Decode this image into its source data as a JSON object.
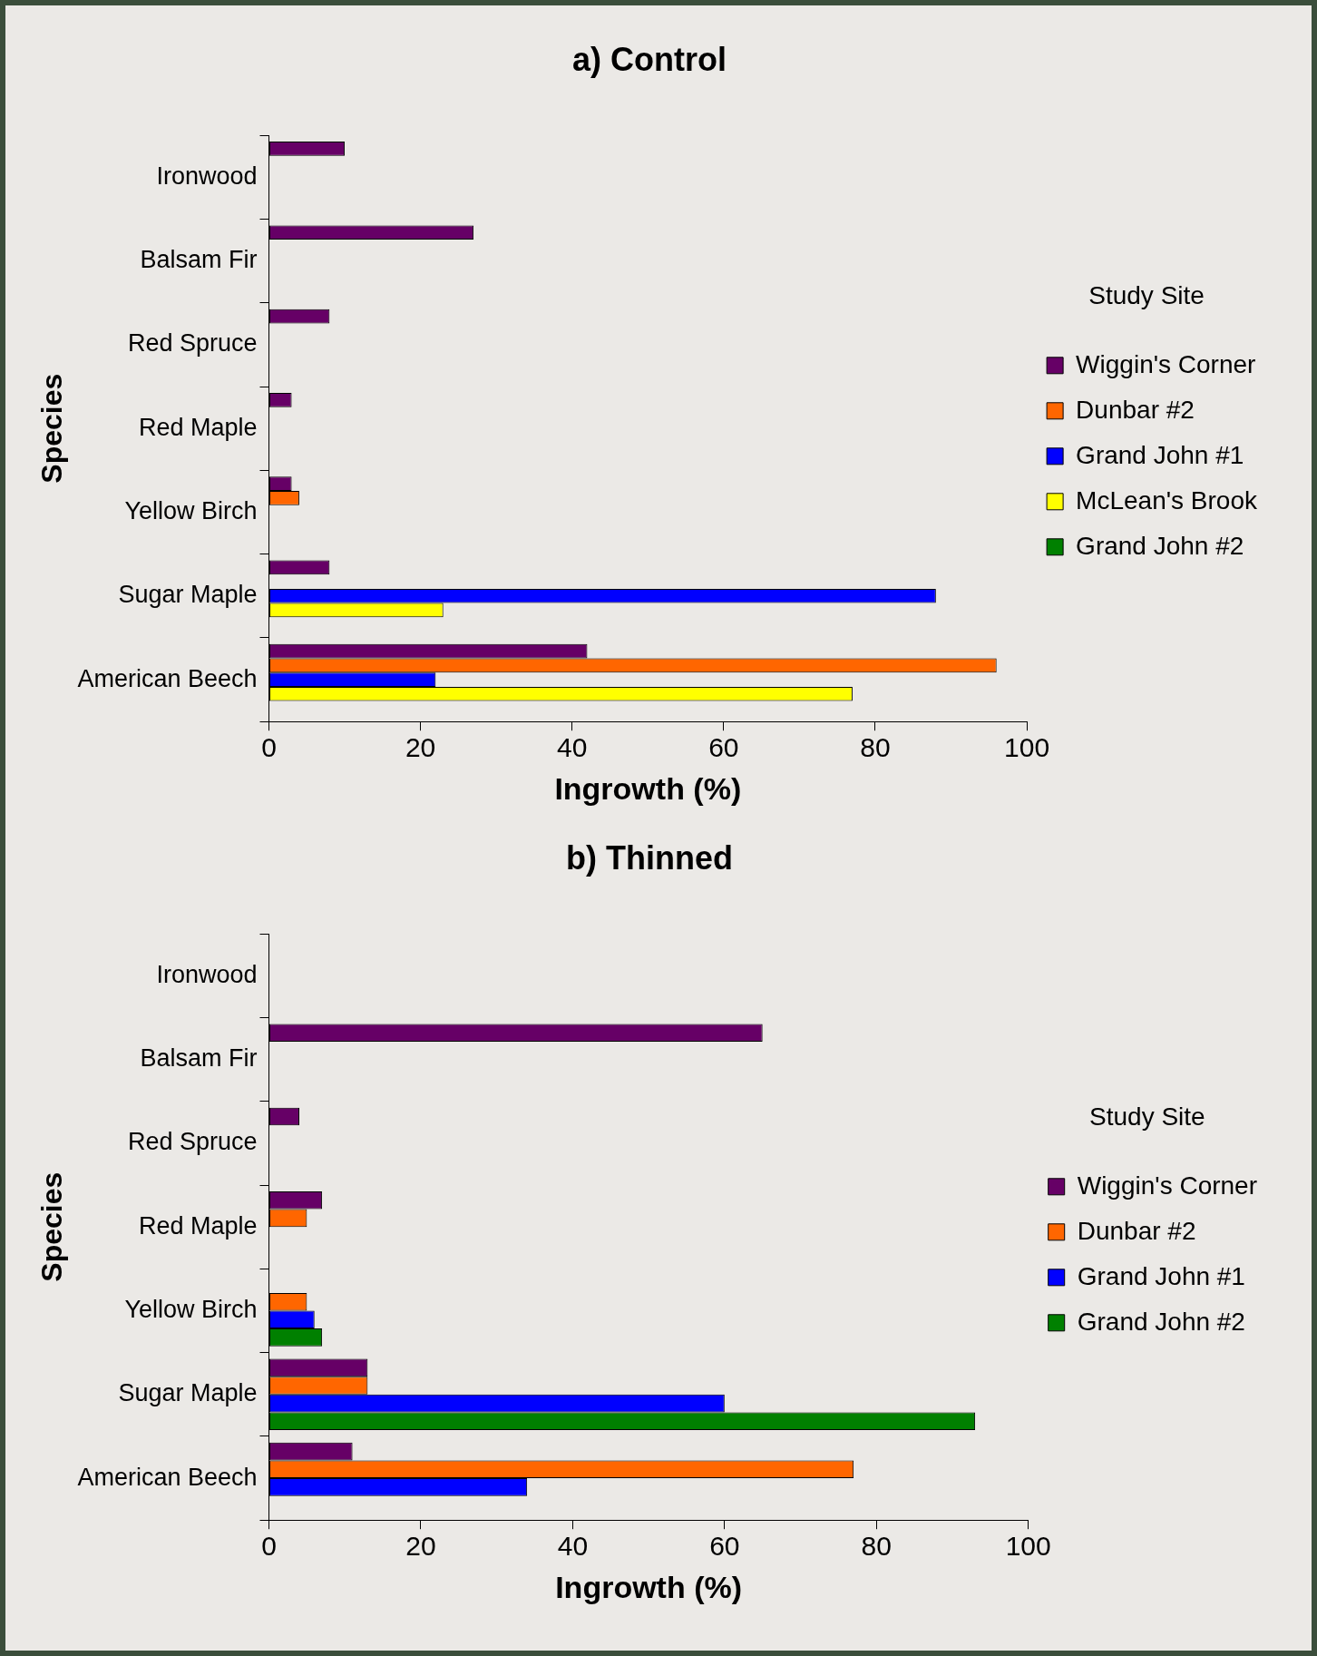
{
  "chart_data": [
    {
      "type": "bar",
      "orientation": "horizontal",
      "title": "a) Control",
      "xlabel": "Ingrowth (%)",
      "ylabel": "Species",
      "legend_title": "Study Site",
      "legend": "right",
      "grid": false,
      "categories": [
        "Ironwood",
        "Balsam Fir",
        "Red Spruce",
        "Red Maple",
        "Yellow Birch",
        "Sugar Maple",
        "American Beech"
      ],
      "xlim": [
        0,
        100
      ],
      "xticks": [
        0,
        20,
        40,
        60,
        80,
        100
      ],
      "series": [
        {
          "name": "Wiggin's Corner",
          "color": "#660066",
          "values": [
            10,
            27,
            8,
            3,
            3,
            8,
            42
          ]
        },
        {
          "name": "Dunbar #2",
          "color": "#ff6600",
          "values": [
            null,
            null,
            null,
            null,
            4,
            null,
            96
          ]
        },
        {
          "name": "Grand John #1",
          "color": "#0000ff",
          "values": [
            null,
            null,
            null,
            null,
            null,
            88,
            22
          ]
        },
        {
          "name": "McLean's Brook",
          "color": "#ffff00",
          "values": [
            null,
            null,
            null,
            null,
            null,
            23,
            77
          ]
        },
        {
          "name": "Grand John #2",
          "color": "#008000",
          "values": [
            null,
            null,
            null,
            null,
            null,
            null,
            null
          ]
        }
      ]
    },
    {
      "type": "bar",
      "orientation": "horizontal",
      "title": "b) Thinned",
      "xlabel": "Ingrowth (%)",
      "ylabel": "Species",
      "legend_title": "Study Site",
      "legend": "right",
      "grid": false,
      "categories": [
        "Ironwood",
        "Balsam Fir",
        "Red Spruce",
        "Red Maple",
        "Yellow Birch",
        "Sugar Maple",
        "American Beech"
      ],
      "xlim": [
        0,
        100
      ],
      "xticks": [
        0,
        20,
        40,
        60,
        80,
        100
      ],
      "series": [
        {
          "name": "Wiggin's Corner",
          "color": "#660066",
          "values": [
            null,
            65,
            4,
            7,
            null,
            13,
            11
          ]
        },
        {
          "name": "Dunbar #2",
          "color": "#ff6600",
          "values": [
            null,
            null,
            null,
            5,
            5,
            13,
            77
          ]
        },
        {
          "name": "Grand John #1",
          "color": "#0000ff",
          "values": [
            null,
            null,
            null,
            null,
            6,
            60,
            34
          ]
        },
        {
          "name": "Grand John #2",
          "color": "#008000",
          "values": [
            null,
            null,
            null,
            null,
            7,
            93,
            null
          ]
        }
      ]
    }
  ]
}
